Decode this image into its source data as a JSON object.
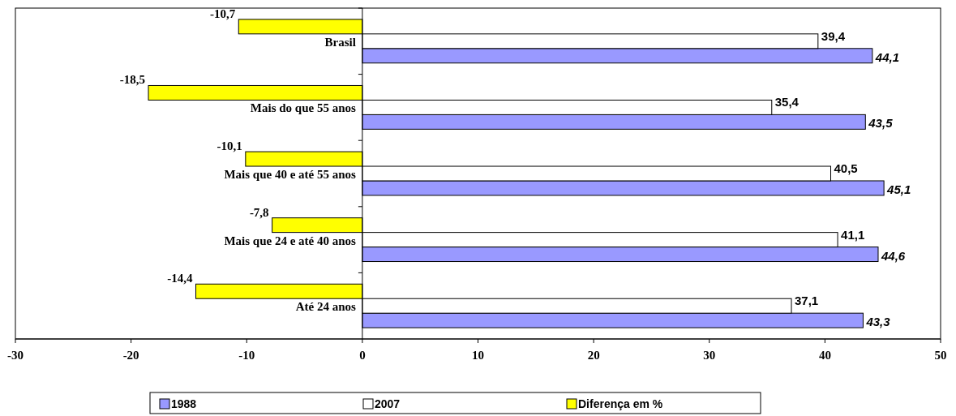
{
  "chart_data": {
    "type": "bar",
    "orientation": "horizontal",
    "categories": [
      "Brasil",
      "Mais do que 55 anos",
      "Mais que 40 e até 55 anos",
      "Mais que 24 e até 40 anos",
      "Até 24 anos"
    ],
    "series": [
      {
        "name": "1988",
        "color": "#9999ff",
        "values": [
          44.1,
          43.5,
          45.1,
          44.6,
          43.3
        ],
        "value_labels": [
          "44,1",
          "43,5",
          "45,1",
          "44,6",
          "43,3"
        ]
      },
      {
        "name": "2007",
        "color": "#ffffff",
        "values": [
          39.4,
          35.4,
          40.5,
          41.1,
          37.1
        ],
        "value_labels": [
          "39,4",
          "35,4",
          "40,5",
          "41,1",
          "37,1"
        ]
      },
      {
        "name": "Diferença em %",
        "color": "#ffff00",
        "values": [
          -10.7,
          -18.5,
          -10.1,
          -7.8,
          -14.4
        ],
        "value_labels": [
          "-10,7",
          "-18,5",
          "-10,1",
          "-7,8",
          "-14,4"
        ]
      }
    ],
    "xlim": [
      -30,
      50
    ],
    "xticks": [
      -30,
      -20,
      -10,
      0,
      10,
      20,
      30,
      40,
      50
    ],
    "grid": false,
    "legend": "bottom"
  }
}
